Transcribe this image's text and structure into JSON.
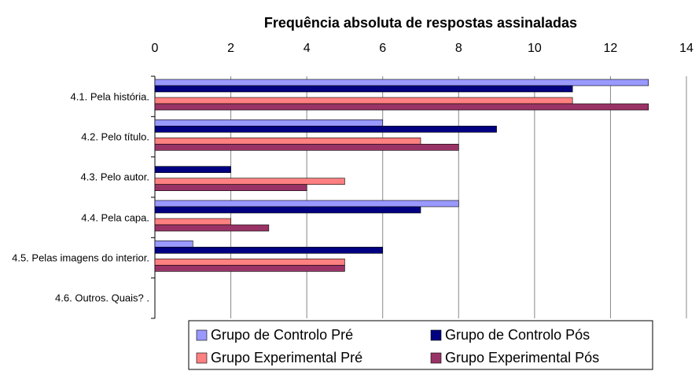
{
  "chart_data": {
    "type": "bar",
    "orientation": "horizontal",
    "title": "Frequência absoluta de respostas assinaladas",
    "categories": [
      "4.1. Pela história.",
      "4.2. Pelo título.",
      "4.3. Pelo autor.",
      "4.4. Pela capa.",
      "4.5. Pelas imagens do interior.",
      "4.6. Outros. Quais? ."
    ],
    "series": [
      {
        "name": "Grupo de Controlo Pré",
        "color": "#9999ff",
        "values": [
          13,
          6,
          0,
          8,
          1,
          0
        ]
      },
      {
        "name": "Grupo de Controlo Pós",
        "color": "#000080",
        "values": [
          11,
          9,
          2,
          7,
          6,
          0
        ]
      },
      {
        "name": "Grupo Experimental Pré",
        "color": "#ff8080",
        "values": [
          11,
          7,
          5,
          2,
          5,
          0
        ]
      },
      {
        "name": "Grupo Experimental Pós",
        "color": "#993366",
        "values": [
          13,
          8,
          4,
          3,
          5,
          0
        ]
      }
    ],
    "xlim": [
      0,
      14
    ],
    "xticks": [
      0,
      2,
      4,
      6,
      8,
      10,
      12,
      14
    ],
    "grid": true
  }
}
